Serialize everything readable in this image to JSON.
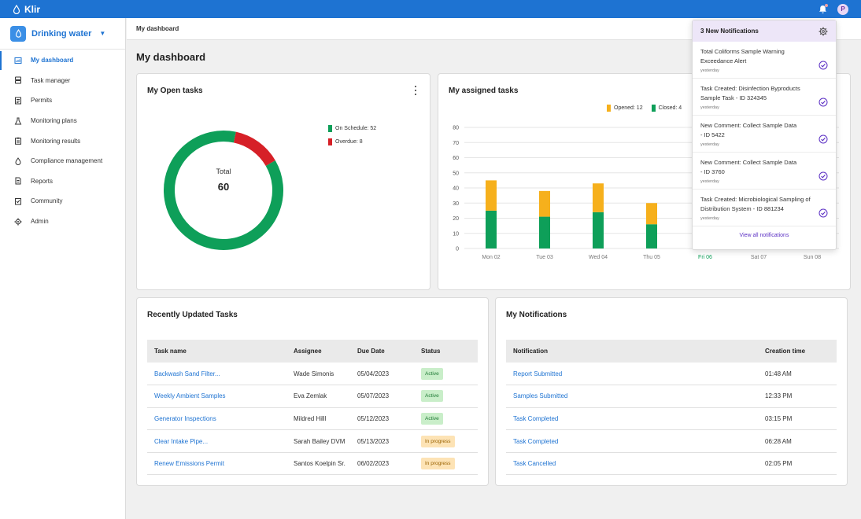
{
  "app": {
    "name": "Klir"
  },
  "topbar": {
    "avatar_initial": "P"
  },
  "workspace": {
    "name": "Drinking water"
  },
  "sidebar": {
    "items": [
      {
        "label": "My dashboard",
        "icon": "dashboard-icon",
        "active": true
      },
      {
        "label": "Task manager",
        "icon": "task-manager-icon"
      },
      {
        "label": "Permits",
        "icon": "permits-icon"
      },
      {
        "label": "Monitoring plans",
        "icon": "flask-icon"
      },
      {
        "label": "Monitoring results",
        "icon": "clipboard-icon"
      },
      {
        "label": "Compliance management",
        "icon": "compliance-icon"
      },
      {
        "label": "Reports",
        "icon": "report-icon"
      },
      {
        "label": "Community",
        "icon": "community-icon"
      },
      {
        "label": "Admin",
        "icon": "gear-icon"
      }
    ]
  },
  "breadcrumb": "My dashboard",
  "page_title": "My dashboard",
  "open_tasks": {
    "title": "My Open tasks",
    "total_label": "Total",
    "total_value": "60",
    "legend": [
      {
        "label": "On Schedule: 52",
        "color": "#0e9f59"
      },
      {
        "label": "Overdue: 8",
        "color": "#d62027"
      }
    ]
  },
  "assigned_tasks": {
    "title": "My assigned tasks",
    "legend": [
      {
        "label": "Opened: 12",
        "color": "#f6b01c"
      },
      {
        "label": "Closed: 4",
        "color": "#0e9f59"
      }
    ]
  },
  "chart_data": [
    {
      "type": "pie",
      "title": "My Open tasks",
      "categories": [
        "On Schedule",
        "Overdue"
      ],
      "values": [
        52,
        8
      ],
      "colors": [
        "#0e9f59",
        "#d62027"
      ],
      "donut": true
    },
    {
      "type": "bar",
      "title": "My assigned tasks",
      "stacked": true,
      "categories": [
        "Mon 02",
        "Tue 03",
        "Wed 04",
        "Thu 05",
        "Fri 06",
        "Sat 07",
        "Sun 08"
      ],
      "highlight_category": "Fri 06",
      "series": [
        {
          "name": "Closed",
          "color": "#0e9f59",
          "values": [
            25,
            21,
            24,
            16,
            null,
            null,
            null
          ]
        },
        {
          "name": "Opened",
          "color": "#f6b01c",
          "values": [
            20,
            17,
            19,
            14,
            null,
            null,
            null
          ]
        }
      ],
      "yticks": [
        0,
        10,
        20,
        30,
        40,
        50,
        60,
        70,
        80
      ],
      "ylim": [
        0,
        80
      ],
      "grid": true,
      "legend_position": "top"
    }
  ],
  "recent_tasks": {
    "title": "Recently Updated Tasks",
    "columns": [
      "Task name",
      "Assignee",
      "Due Date",
      "Status"
    ],
    "rows": [
      {
        "name": "Backwash Sand Filter...",
        "assignee": "Wade Simonis",
        "due": "05/04/2023",
        "status": "Active",
        "status_kind": "active"
      },
      {
        "name": "Weekly Ambient Samples",
        "assignee": "Eva Zemlak",
        "due": "05/07/2023",
        "status": "Active",
        "status_kind": "active"
      },
      {
        "name": "Generator Inspections",
        "assignee": "Mildred Hilll",
        "due": "05/12/2023",
        "status": "Active",
        "status_kind": "active"
      },
      {
        "name": "Clear Intake Pipe...",
        "assignee": "Sarah Bailey DVM",
        "due": "05/13/2023",
        "status": "In progress",
        "status_kind": "progress"
      },
      {
        "name": "Renew Emissions Permit",
        "assignee": "Santos Koelpin Sr.",
        "due": "06/02/2023",
        "status": "In progress",
        "status_kind": "progress"
      }
    ]
  },
  "my_notifications": {
    "title": "My Notifications",
    "columns": [
      "Notification",
      "Creation time"
    ],
    "rows": [
      {
        "name": "Report Submitted",
        "time": "01:48 AM"
      },
      {
        "name": "Samples Submitted",
        "time": "12:33 PM"
      },
      {
        "name": "Task Completed",
        "time": "03:15 PM"
      },
      {
        "name": "Task Completed",
        "time": "06:28 AM"
      },
      {
        "name": "Task Cancelled",
        "time": "02:05 PM"
      }
    ]
  },
  "notification_panel": {
    "header": "3 New Notifications",
    "items": [
      {
        "text_line1": "Total Coliforms Sample Warning",
        "text_line2": "Exceedance Alert",
        "time": "yesterday"
      },
      {
        "text_line1": "Task Created: Disinfection Byproducts",
        "text_line2": "Sample Task - ID 324345",
        "time": "yesterday"
      },
      {
        "text_line1": "New Comment: Collect Sample Data",
        "text_line2": "- ID 5422",
        "time": "yesterday"
      },
      {
        "text_line1": "New Comment: Collect Sample Data",
        "text_line2": "- ID 3760",
        "time": "yesterday"
      },
      {
        "text_line1": "Task Created: Microbiological Sampling of",
        "text_line2": "Distribution System - ID 881234",
        "time": "yesterday"
      }
    ],
    "footer": "View all notifications"
  }
}
